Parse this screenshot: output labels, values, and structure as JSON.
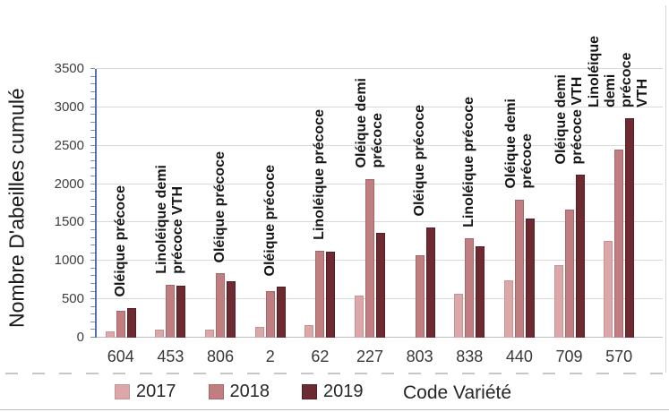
{
  "chart_data": {
    "type": "bar",
    "title": "",
    "xlabel": "Code Variété",
    "ylabel": "Nombre D'abeilles cumulé",
    "ylim": [
      0,
      3500
    ],
    "ytick_step": 500,
    "minor_tick_step": 100,
    "grid": "horizontal",
    "legend_position": "bottom-left",
    "categories": [
      "604",
      "453",
      "806",
      "2",
      "62",
      "227",
      "803",
      "838",
      "440",
      "709",
      "570"
    ],
    "variety_labels": [
      "Oléique précoce",
      "Linoléique demi\nprécoce VTH",
      "Oléique précoce",
      "Oléique précoce",
      "Linoléique précoce",
      "Oléique demi\nprécoce",
      "Oléique précoce",
      "Linoléique précoce",
      "Oléique demi\nprécoce",
      "Oléique demi\nprécoce VTH",
      "Linoléique demi\nprécoce VTH"
    ],
    "series": [
      {
        "name": "2017",
        "color": "#dca7a8",
        "border": "#c69293",
        "values": [
          80,
          110,
          110,
          140,
          160,
          550,
          null,
          570,
          750,
          950,
          1260
        ]
      },
      {
        "name": "2018",
        "color": "#c17e80",
        "border": "#a4686a",
        "values": [
          350,
          690,
          840,
          610,
          1130,
          2070,
          1070,
          1300,
          1800,
          1670,
          2450
        ]
      },
      {
        "name": "2019",
        "color": "#6e2a31",
        "border": "#511e24",
        "values": [
          390,
          680,
          730,
          660,
          1120,
          1370,
          1440,
          1190,
          1550,
          2120,
          2860
        ]
      }
    ]
  },
  "colors": {
    "axis_line": "#4d74b0",
    "gridline": "#d9d9d9",
    "minor_tick": "#8c8c8c",
    "text_dark": "#1a1a1a",
    "text_gray": "#3d3d3d"
  }
}
